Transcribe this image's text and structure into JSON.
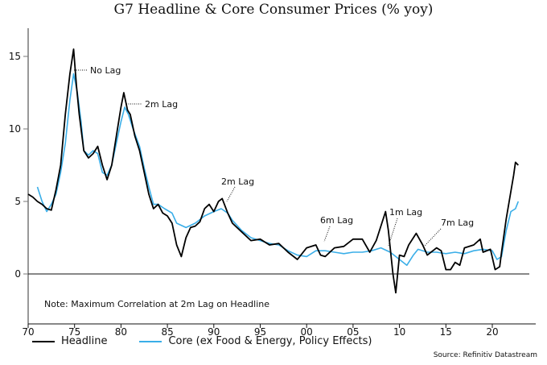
{
  "chart_data": {
    "type": "line",
    "title": "G7 Headline & Core Consumer Prices (% yoy)",
    "xlabel": "",
    "ylabel": "",
    "xlim": [
      1970,
      2024.6
    ],
    "ylim": [
      -3.4,
      16.9
    ],
    "x_tick_labels": [
      "70",
      "75",
      "80",
      "85",
      "90",
      "95",
      "00",
      "05",
      "10",
      "15",
      "20"
    ],
    "y_ticks": [
      0,
      5,
      10,
      15
    ],
    "y_tick_labels": [
      "0",
      "5",
      "10",
      "15"
    ],
    "grid": false,
    "legend_placement": "bottom",
    "series": [
      {
        "name": "Headline",
        "color": "#000000",
        "x": [
          1970,
          1970.5,
          1971,
          1971.5,
          1972,
          1972.5,
          1973,
          1973.5,
          1974,
          1974.5,
          1974.9,
          1975.2,
          1975.5,
          1976,
          1976.5,
          1977,
          1977.5,
          1978,
          1978.5,
          1979,
          1979.5,
          1980,
          1980.3,
          1980.7,
          1981,
          1981.5,
          1982,
          1982.5,
          1983,
          1983.5,
          1984,
          1984.5,
          1985,
          1985.5,
          1986,
          1986.5,
          1987,
          1987.5,
          1988,
          1988.5,
          1989,
          1989.5,
          1990,
          1990.5,
          1990.9,
          1991.5,
          1992,
          1992.5,
          1993,
          1994,
          1995,
          1996,
          1997,
          1998,
          1999,
          2000,
          2001,
          2001.5,
          2002,
          2003,
          2004,
          2005,
          2006,
          2006.8,
          2007.5,
          2008.5,
          2008.8,
          2009.3,
          2009.6,
          2010,
          2010.5,
          2011,
          2011.8,
          2012.5,
          2013,
          2014,
          2014.5,
          2015,
          2015.5,
          2016,
          2016.5,
          2017,
          2018,
          2018.7,
          2019,
          2019.8,
          2020.3,
          2020.8,
          2021,
          2021.5,
          2021.9,
          2022.3,
          2022.5,
          2022.8
        ],
        "values": [
          5.5,
          5.3,
          5.0,
          4.8,
          4.5,
          4.4,
          5.8,
          7.5,
          11,
          13.8,
          15.5,
          13,
          11,
          8.5,
          8.0,
          8.3,
          8.8,
          7.5,
          6.5,
          7.5,
          9.5,
          11.5,
          12.5,
          11.3,
          11,
          9.5,
          8.5,
          7,
          5.5,
          4.5,
          4.8,
          4.2,
          4.0,
          3.5,
          2.0,
          1.2,
          2.5,
          3.2,
          3.3,
          3.6,
          4.5,
          4.8,
          4.3,
          5.0,
          5.2,
          4.2,
          3.5,
          3.2,
          2.9,
          2.3,
          2.4,
          2.0,
          2.1,
          1.5,
          1.0,
          1.8,
          2.0,
          1.3,
          1.2,
          1.8,
          1.9,
          2.4,
          2.4,
          1.5,
          2.3,
          4.3,
          3.0,
          0.0,
          -1.3,
          1.3,
          1.2,
          2.0,
          2.8,
          2.0,
          1.3,
          1.8,
          1.6,
          0.3,
          0.3,
          0.8,
          0.6,
          1.8,
          2.0,
          2.4,
          1.5,
          1.7,
          0.3,
          0.5,
          1.5,
          3.8,
          5.3,
          6.8,
          7.7,
          7.5
        ]
      },
      {
        "name": "Core (ex Food & Energy, Policy Effects)",
        "color": "#3aaee8",
        "x": [
          1971,
          1971.5,
          1972,
          1972.5,
          1973,
          1973.5,
          1974,
          1974.5,
          1974.9,
          1975.3,
          1975.7,
          1976,
          1976.5,
          1977,
          1977.5,
          1978,
          1978.5,
          1979,
          1979.5,
          1980,
          1980.4,
          1980.8,
          1981.3,
          1982,
          1982.5,
          1983,
          1983.5,
          1984,
          1984.7,
          1985.5,
          1986,
          1987,
          1988,
          1989,
          1990,
          1990.8,
          1991.5,
          1992,
          1993,
          1994,
          1995,
          1996,
          1997,
          1998,
          1999,
          2000,
          2001,
          2002,
          2003,
          2004,
          2005,
          2006,
          2007,
          2008,
          2009,
          2010,
          2010.8,
          2011.5,
          2012,
          2013,
          2014,
          2015,
          2016,
          2017,
          2018,
          2019,
          2020,
          2020.5,
          2021,
          2021.5,
          2022,
          2022.5,
          2022.8
        ],
        "values": [
          6.0,
          5.0,
          4.3,
          4.8,
          5.5,
          7,
          9,
          12,
          13.8,
          12.5,
          10.5,
          8.5,
          8.2,
          8.5,
          8.3,
          7.0,
          6.8,
          7.5,
          9,
          10.5,
          11.5,
          11,
          10,
          8.8,
          7.3,
          6,
          4.8,
          4.8,
          4.5,
          4.2,
          3.5,
          3.2,
          3.5,
          4.0,
          4.3,
          4.5,
          4.2,
          3.7,
          3.0,
          2.5,
          2.3,
          2.1,
          2.0,
          1.6,
          1.3,
          1.2,
          1.6,
          1.6,
          1.5,
          1.4,
          1.5,
          1.5,
          1.6,
          1.8,
          1.5,
          1.0,
          0.6,
          1.3,
          1.7,
          1.5,
          1.5,
          1.4,
          1.5,
          1.4,
          1.6,
          1.7,
          1.6,
          1.0,
          1.2,
          3.0,
          4.3,
          4.5,
          5.0
        ]
      }
    ],
    "annotations": [
      "No Lag",
      "2m Lag",
      "2m Lag",
      "6m Lag",
      "1m Lag",
      "7m Lag"
    ],
    "note": "Note: Maximum Correlation at 2m Lag on Headline",
    "source": "Source: Refinitiv Datastream"
  }
}
